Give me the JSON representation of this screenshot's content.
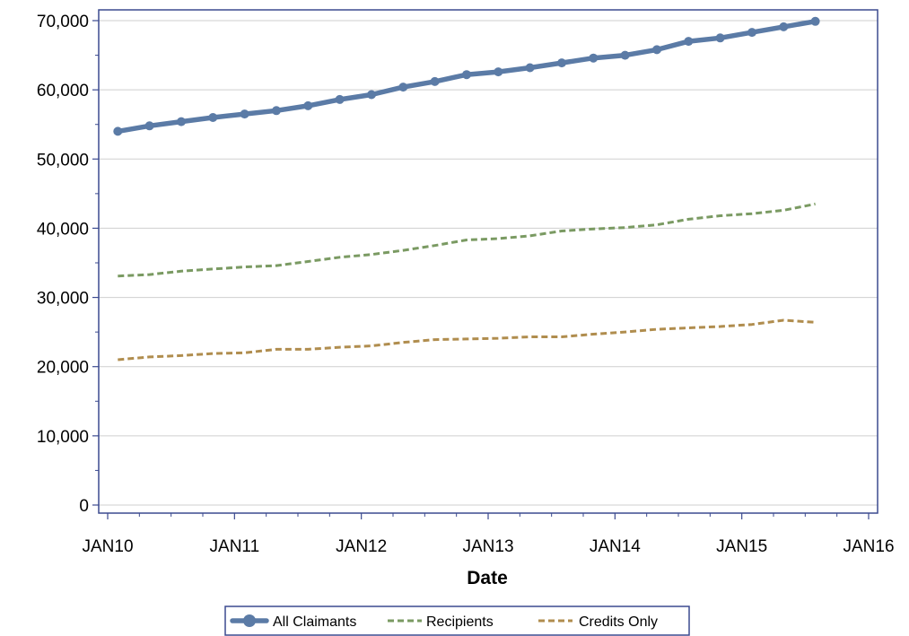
{
  "chart_data": {
    "type": "line",
    "xlabel": "Date",
    "ylabel": "",
    "x_ticks": [
      "JAN10",
      "JAN11",
      "JAN12",
      "JAN13",
      "JAN14",
      "JAN15",
      "JAN16"
    ],
    "xlim": [
      2010.0,
      2016.0
    ],
    "ylim": [
      0,
      70000
    ],
    "y_ticks": [
      0,
      10000,
      20000,
      30000,
      40000,
      50000,
      60000,
      70000
    ],
    "y_tick_labels": [
      "0",
      "10,000",
      "20,000",
      "30,000",
      "40,000",
      "50,000",
      "60,000",
      "70,000"
    ],
    "grid": true,
    "legend_placement": "bottom",
    "x": [
      2010.08,
      2010.33,
      2010.58,
      2010.83,
      2011.08,
      2011.33,
      2011.58,
      2011.83,
      2012.08,
      2012.33,
      2012.58,
      2012.83,
      2013.08,
      2013.33,
      2013.58,
      2013.83,
      2014.08,
      2014.33,
      2014.58,
      2014.83,
      2015.08,
      2015.33,
      2015.58
    ],
    "series": [
      {
        "name": "All Claimants",
        "style": "solid-markers",
        "color": "#5b7ba6",
        "values": [
          54000,
          54800,
          55400,
          56000,
          56500,
          57000,
          57700,
          58600,
          59300,
          60400,
          61200,
          62200,
          62600,
          63200,
          63900,
          64600,
          65000,
          65800,
          67000,
          67500,
          68300,
          69100,
          69900
        ]
      },
      {
        "name": "Recipients",
        "style": "dashed",
        "color": "#7a9a62",
        "values": [
          33100,
          33300,
          33800,
          34100,
          34400,
          34600,
          35200,
          35800,
          36200,
          36800,
          37500,
          38300,
          38500,
          38900,
          39600,
          39900,
          40100,
          40500,
          41300,
          41800,
          42100,
          42600,
          43500
        ]
      },
      {
        "name": "Credits Only",
        "style": "dashed",
        "color": "#b08d4e",
        "values": [
          21000,
          21400,
          21600,
          21900,
          22000,
          22500,
          22500,
          22800,
          23000,
          23500,
          23900,
          24000,
          24100,
          24300,
          24300,
          24700,
          25000,
          25400,
          25600,
          25800,
          26100,
          26700,
          26400
        ]
      }
    ]
  }
}
